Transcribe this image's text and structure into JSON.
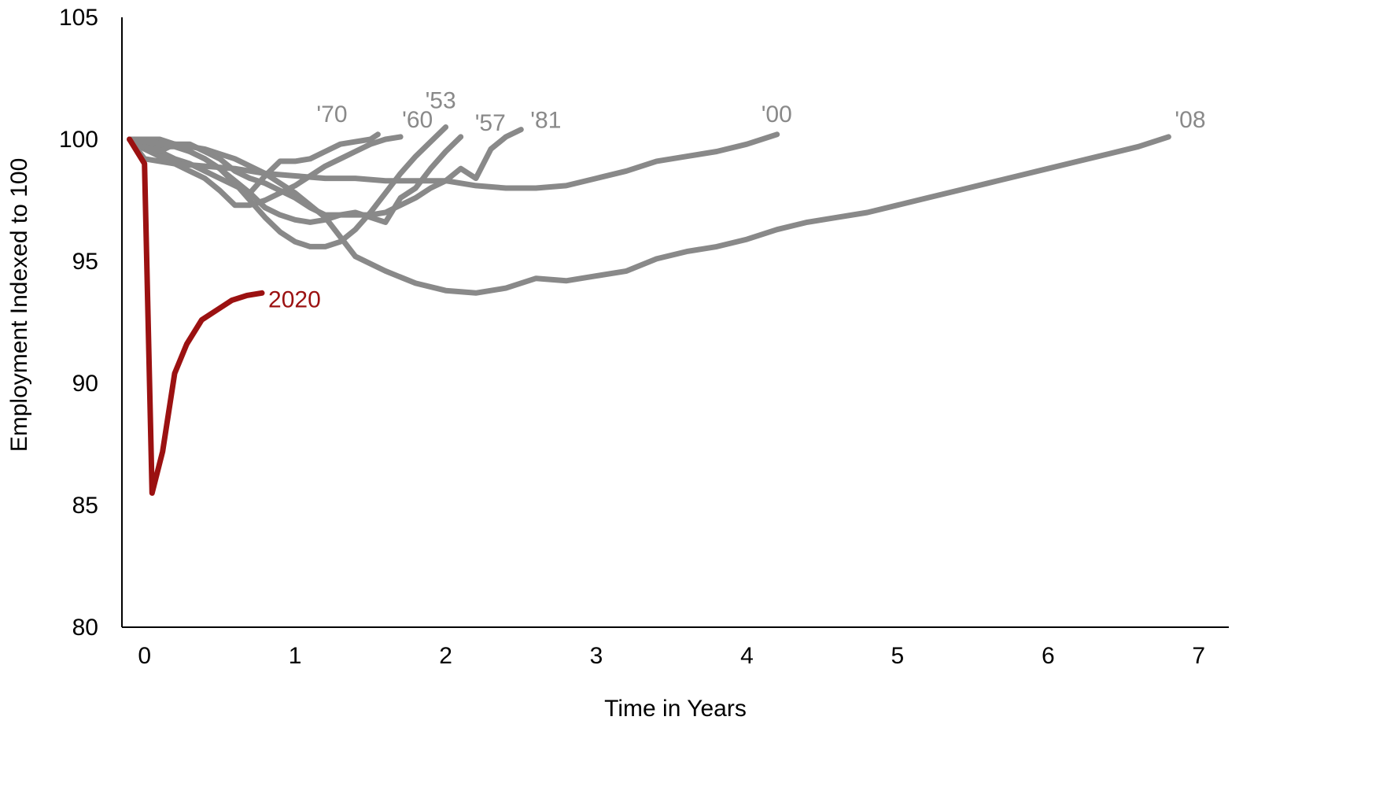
{
  "chart_data": {
    "type": "line",
    "title": "",
    "xlabel": "Time in Years",
    "ylabel": "Employment Indexed to 100",
    "xlim": [
      -0.15,
      7.2
    ],
    "ylim": [
      80,
      105
    ],
    "x_ticks": [
      {
        "value": 0,
        "label": "0"
      },
      {
        "value": 1,
        "label": "1"
      },
      {
        "value": 2,
        "label": "2"
      },
      {
        "value": 3,
        "label": "3"
      },
      {
        "value": 4,
        "label": "4"
      },
      {
        "value": 5,
        "label": "5"
      },
      {
        "value": 6,
        "label": "6"
      },
      {
        "value": 7,
        "label": "7"
      }
    ],
    "y_ticks": [
      {
        "value": 80,
        "label": "80"
      },
      {
        "value": 85,
        "label": "85"
      },
      {
        "value": 90,
        "label": "90"
      },
      {
        "value": 95,
        "label": "95"
      },
      {
        "value": 100,
        "label": "100"
      },
      {
        "value": 105,
        "label": "105"
      }
    ],
    "grid": false,
    "legend": "none",
    "colors": {
      "historical": "#898989",
      "current": "#9b1111",
      "axis": "#000000"
    },
    "series": [
      {
        "name": "'70",
        "color": "#898989",
        "x": [
          -0.1,
          0.0,
          0.1,
          0.2,
          0.3,
          0.4,
          0.5,
          0.6,
          0.7,
          0.8,
          0.9,
          1.0,
          1.1,
          1.2,
          1.3,
          1.4,
          1.5,
          1.55
        ],
        "y": [
          100,
          99.8,
          99.5,
          99.2,
          99.0,
          98.7,
          98.4,
          98.1,
          97.8,
          98.5,
          99.1,
          99.1,
          99.2,
          99.5,
          99.8,
          99.9,
          100.0,
          100.2
        ]
      },
      {
        "name": "'60",
        "color": "#898989",
        "x": [
          -0.1,
          0.0,
          0.1,
          0.2,
          0.3,
          0.4,
          0.5,
          0.6,
          0.7,
          0.8,
          0.9,
          1.0,
          1.1,
          1.2,
          1.3,
          1.4,
          1.5,
          1.6,
          1.7
        ],
        "y": [
          100,
          99.6,
          99.3,
          99.0,
          98.7,
          98.4,
          97.9,
          97.3,
          97.3,
          97.5,
          97.8,
          98.1,
          98.5,
          98.9,
          99.2,
          99.5,
          99.8,
          100.0,
          100.1
        ]
      },
      {
        "name": "'53",
        "color": "#898989",
        "x": [
          -0.1,
          0.0,
          0.1,
          0.2,
          0.3,
          0.4,
          0.5,
          0.6,
          0.7,
          0.8,
          0.9,
          1.0,
          1.1,
          1.2,
          1.3,
          1.4,
          1.5,
          1.6,
          1.7,
          1.8,
          1.9,
          2.0
        ],
        "y": [
          100,
          100,
          100,
          99.8,
          99.5,
          99.2,
          98.8,
          98.2,
          97.5,
          96.8,
          96.2,
          95.8,
          95.6,
          95.6,
          95.8,
          96.3,
          97.0,
          97.8,
          98.6,
          99.3,
          99.9,
          100.5
        ]
      },
      {
        "name": "'57",
        "color": "#898989",
        "x": [
          -0.1,
          0.0,
          0.1,
          0.2,
          0.3,
          0.4,
          0.5,
          0.6,
          0.7,
          0.8,
          0.9,
          1.0,
          1.1,
          1.2,
          1.3,
          1.4,
          1.5,
          1.6,
          1.7,
          1.8,
          1.9,
          2.0,
          2.1
        ],
        "y": [
          100,
          99.9,
          99.7,
          99.7,
          99.5,
          99.2,
          98.8,
          98.3,
          97.8,
          97.2,
          96.9,
          96.7,
          96.6,
          96.7,
          96.9,
          97.0,
          96.8,
          96.6,
          97.6,
          98.0,
          98.8,
          99.5,
          100.1
        ]
      },
      {
        "name": "'81",
        "color": "#898989",
        "x": [
          -0.1,
          0.0,
          0.1,
          0.2,
          0.3,
          0.4,
          0.5,
          0.6,
          0.7,
          0.8,
          0.9,
          1.0,
          1.1,
          1.2,
          1.3,
          1.4,
          1.5,
          1.6,
          1.7,
          1.8,
          1.9,
          2.0,
          2.1,
          2.2,
          2.3,
          2.4,
          2.5
        ],
        "y": [
          100,
          99.7,
          99.5,
          99.8,
          99.8,
          99.5,
          99.2,
          98.7,
          98.4,
          98.2,
          97.9,
          97.6,
          97.2,
          96.9,
          96.9,
          96.9,
          96.9,
          97.0,
          97.3,
          97.6,
          98.0,
          98.3,
          98.8,
          98.4,
          99.6,
          100.1,
          100.4
        ]
      },
      {
        "name": "'00",
        "color": "#898989",
        "x": [
          -0.1,
          0.0,
          0.2,
          0.4,
          0.6,
          0.8,
          1.0,
          1.2,
          1.4,
          1.6,
          1.8,
          2.0,
          2.2,
          2.4,
          2.6,
          2.8,
          3.0,
          3.2,
          3.4,
          3.6,
          3.8,
          4.0,
          4.2
        ],
        "y": [
          100,
          99.2,
          99.0,
          98.9,
          98.8,
          98.6,
          98.5,
          98.4,
          98.4,
          98.3,
          98.3,
          98.3,
          98.1,
          98.0,
          98.0,
          98.1,
          98.4,
          98.7,
          99.1,
          99.3,
          99.5,
          99.8,
          100.2
        ]
      },
      {
        "name": "'08",
        "color": "#898989",
        "x": [
          -0.1,
          0.0,
          0.2,
          0.4,
          0.6,
          0.8,
          1.0,
          1.2,
          1.4,
          1.6,
          1.8,
          2.0,
          2.2,
          2.4,
          2.6,
          2.8,
          3.0,
          3.2,
          3.4,
          3.6,
          3.8,
          4.0,
          4.2,
          4.4,
          4.6,
          4.8,
          5.0,
          5.2,
          5.4,
          5.6,
          5.8,
          6.0,
          6.2,
          6.4,
          6.6,
          6.8
        ],
        "y": [
          100,
          99.9,
          99.8,
          99.6,
          99.2,
          98.6,
          97.8,
          96.8,
          95.2,
          94.6,
          94.1,
          93.8,
          93.7,
          93.9,
          94.3,
          94.2,
          94.4,
          94.6,
          95.1,
          95.4,
          95.6,
          95.9,
          96.3,
          96.6,
          96.8,
          97.0,
          97.3,
          97.6,
          97.9,
          98.2,
          98.5,
          98.8,
          99.1,
          99.4,
          99.7,
          100.1
        ]
      },
      {
        "name": "2020",
        "color": "#9b1111",
        "x": [
          -0.1,
          0.0,
          0.05,
          0.12,
          0.2,
          0.28,
          0.38,
          0.48,
          0.58,
          0.68,
          0.78
        ],
        "y": [
          100,
          99.0,
          85.5,
          87.2,
          90.4,
          91.6,
          92.6,
          93.0,
          93.4,
          93.6,
          93.7
        ]
      }
    ],
    "annotations": [
      {
        "text": "'70",
        "series": "'70"
      },
      {
        "text": "'60",
        "series": "'60"
      },
      {
        "text": "'53",
        "series": "'53"
      },
      {
        "text": "'57",
        "series": "'57"
      },
      {
        "text": "'81",
        "series": "'81"
      },
      {
        "text": "'00",
        "series": "'00"
      },
      {
        "text": "'08",
        "series": "'08"
      },
      {
        "text": "2020",
        "series": "2020"
      }
    ]
  }
}
